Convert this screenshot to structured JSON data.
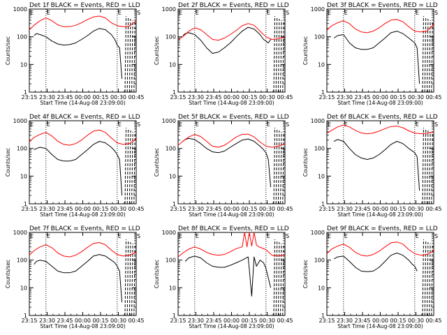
{
  "figure": {
    "ylabel": "Counts/sec",
    "xlabel": "Start Time (14-Aug-08 23:09:00)",
    "x_ticks": [
      "23:15",
      "23:30",
      "23:45",
      "00:00",
      "00:15",
      "00:30",
      "00:45"
    ],
    "y_ticks": [
      "1",
      "10",
      "100",
      "1000"
    ],
    "markers": [
      {
        "label": "E",
        "time_min": 20
      },
      {
        "label": "E",
        "time_min": 80
      },
      {
        "label": "S",
        "time_min": 96
      }
    ],
    "colors": {
      "events": "#000000",
      "lld": "#ff0000"
    }
  },
  "chart_data": [
    {
      "type": "line",
      "title": "Det 1f BLACK = Events, RED = LLD",
      "ylim": [
        1,
        1000
      ],
      "x_range_min": [
        6,
        96
      ],
      "series": [
        {
          "name": "BLACK = Events",
          "color": "#000000",
          "x": [
            10,
            12,
            15,
            20,
            25,
            30,
            35,
            40,
            45,
            50,
            55,
            60,
            65,
            70,
            75,
            78,
            80,
            82,
            84
          ],
          "y": [
            110,
            130,
            120,
            100,
            70,
            55,
            50,
            52,
            60,
            80,
            110,
            160,
            200,
            180,
            120,
            80,
            50,
            40,
            3
          ]
        },
        {
          "name": "RED = LLD",
          "color": "#ff0000",
          "x": [
            6,
            10,
            15,
            20,
            25,
            30,
            35,
            40,
            45,
            50,
            55,
            60,
            65,
            70,
            75,
            80,
            85,
            90,
            95,
            96
          ],
          "y": [
            180,
            260,
            380,
            480,
            380,
            270,
            230,
            230,
            260,
            320,
            420,
            520,
            560,
            480,
            320,
            250,
            230,
            240,
            350,
            400
          ]
        }
      ]
    },
    {
      "type": "line",
      "title": "Det 2f BLACK = Events, RED = LLD",
      "ylim": [
        1,
        1000
      ],
      "x_range_min": [
        6,
        96
      ],
      "series": [
        {
          "name": "BLACK = Events",
          "color": "#000000",
          "x": [
            10,
            12,
            15,
            20,
            25,
            30,
            35,
            40,
            45,
            50,
            55,
            60,
            65,
            70,
            75,
            78,
            80,
            82,
            84
          ],
          "y": [
            110,
            130,
            140,
            120,
            75,
            40,
            25,
            28,
            40,
            60,
            100,
            160,
            220,
            190,
            120,
            80,
            70,
            60,
            80
          ]
        },
        {
          "name": "RED = LLD",
          "color": "#ff0000",
          "x": [
            6,
            10,
            15,
            20,
            25,
            30,
            35,
            40,
            45,
            50,
            55,
            60,
            65,
            70,
            75,
            80,
            85,
            90,
            95,
            96
          ],
          "y": [
            80,
            100,
            160,
            210,
            180,
            120,
            80,
            75,
            90,
            120,
            170,
            250,
            300,
            260,
            160,
            100,
            80,
            85,
            95,
            100
          ]
        }
      ]
    },
    {
      "type": "line",
      "title": "Det 3f BLACK = Events, RED = LLD",
      "ylim": [
        1,
        1000
      ],
      "x_range_min": [
        6,
        96
      ],
      "series": [
        {
          "name": "BLACK = Events",
          "color": "#000000",
          "x": [
            12,
            15,
            20,
            25,
            30,
            35,
            40,
            45,
            50,
            55,
            60,
            65,
            70,
            75,
            80,
            82,
            84
          ],
          "y": [
            90,
            110,
            120,
            60,
            40,
            35,
            35,
            40,
            60,
            90,
            140,
            160,
            130,
            90,
            60,
            40,
            2
          ]
        },
        {
          "name": "RED = LLD",
          "color": "#ff0000",
          "x": [
            6,
            10,
            15,
            20,
            25,
            30,
            35,
            40,
            45,
            50,
            55,
            60,
            65,
            70,
            75,
            80,
            85,
            90,
            95,
            96
          ],
          "y": [
            170,
            250,
            320,
            380,
            300,
            190,
            150,
            140,
            160,
            210,
            300,
            400,
            420,
            350,
            230,
            160,
            150,
            160,
            250,
            300
          ]
        }
      ]
    },
    {
      "type": "line",
      "title": "Det 4f BLACK = Events, RED = LLD",
      "ylim": [
        1,
        1000
      ],
      "x_range_min": [
        6,
        96
      ],
      "series": [
        {
          "name": "BLACK = Events",
          "color": "#000000",
          "x": [
            10,
            12,
            15,
            20,
            25,
            30,
            35,
            40,
            45,
            50,
            55,
            60,
            65,
            70,
            75,
            78,
            80,
            82,
            84
          ],
          "y": [
            90,
            100,
            110,
            100,
            60,
            40,
            35,
            35,
            40,
            60,
            90,
            140,
            180,
            160,
            110,
            80,
            60,
            40,
            2
          ]
        },
        {
          "name": "RED = LLD",
          "color": "#ff0000",
          "x": [
            6,
            10,
            15,
            20,
            25,
            30,
            35,
            40,
            45,
            50,
            55,
            60,
            65,
            70,
            75,
            80,
            85,
            90,
            95,
            96
          ],
          "y": [
            170,
            250,
            320,
            380,
            280,
            180,
            140,
            130,
            150,
            200,
            300,
            420,
            460,
            380,
            240,
            160,
            140,
            150,
            200,
            250
          ]
        }
      ]
    },
    {
      "type": "line",
      "title": "Det 5f BLACK = Events, RED = LLD",
      "ylim": [
        1,
        1000
      ],
      "x_range_min": [
        6,
        96
      ],
      "series": [
        {
          "name": "BLACK = Events",
          "color": "#000000",
          "x": [
            10,
            12,
            15,
            20,
            25,
            30,
            35,
            40,
            45,
            50,
            55,
            60,
            65,
            70,
            75,
            78,
            80,
            82,
            84
          ],
          "y": [
            180,
            210,
            230,
            210,
            150,
            100,
            75,
            70,
            80,
            110,
            150,
            200,
            220,
            180,
            120,
            90,
            70,
            40,
            4
          ]
        },
        {
          "name": "RED = LLD",
          "color": "#ff0000",
          "x": [
            6,
            10,
            15,
            20,
            25,
            30,
            35,
            40,
            45,
            50,
            55,
            60,
            65,
            70,
            75,
            80,
            85,
            90,
            95,
            96
          ],
          "y": [
            130,
            180,
            260,
            320,
            270,
            180,
            120,
            110,
            130,
            180,
            260,
            320,
            330,
            260,
            170,
            120,
            110,
            120,
            140,
            150
          ]
        }
      ]
    },
    {
      "type": "line",
      "title": "Det 6f BLACK = Events, RED = LLD",
      "ylim": [
        1,
        1000
      ],
      "x_range_min": [
        6,
        96
      ],
      "series": [
        {
          "name": "BLACK = Events",
          "color": "#000000",
          "x": [
            12,
            15,
            20,
            25,
            30,
            35,
            40,
            45,
            50,
            55,
            60,
            65,
            70,
            75,
            80,
            82,
            84
          ],
          "y": [
            180,
            210,
            180,
            100,
            60,
            45,
            40,
            45,
            60,
            90,
            140,
            180,
            150,
            100,
            70,
            50,
            3
          ]
        },
        {
          "name": "RED = LLD",
          "color": "#ff0000",
          "x": [
            6,
            10,
            15,
            20,
            25,
            30,
            35,
            40,
            45,
            50,
            55,
            60,
            65,
            70,
            75,
            80,
            85,
            90,
            95,
            96
          ],
          "y": [
            350,
            450,
            600,
            700,
            600,
            450,
            360,
            340,
            360,
            420,
            520,
            620,
            640,
            560,
            430,
            360,
            340,
            350,
            380,
            400
          ]
        }
      ]
    },
    {
      "type": "line",
      "title": "Det 7f BLACK = Events, RED = LLD",
      "ylim": [
        1,
        1000
      ],
      "x_range_min": [
        6,
        96
      ],
      "series": [
        {
          "name": "BLACK = Events",
          "color": "#000000",
          "x": [
            10,
            12,
            15,
            20,
            25,
            30,
            35,
            40,
            45,
            50,
            55,
            60,
            65,
            70,
            75,
            78,
            80,
            82,
            84
          ],
          "y": [
            70,
            90,
            100,
            90,
            60,
            40,
            35,
            35,
            40,
            60,
            90,
            140,
            160,
            140,
            100,
            80,
            60,
            40,
            3
          ]
        },
        {
          "name": "RED = LLD",
          "color": "#ff0000",
          "x": [
            6,
            10,
            15,
            20,
            25,
            30,
            35,
            40,
            45,
            50,
            55,
            60,
            65,
            70,
            75,
            80,
            85,
            90,
            95,
            96
          ],
          "y": [
            150,
            220,
            300,
            360,
            280,
            180,
            140,
            130,
            150,
            200,
            290,
            400,
            430,
            360,
            230,
            160,
            140,
            150,
            180,
            200
          ]
        }
      ]
    },
    {
      "type": "line",
      "title": "Det 8f BLACK = Events, RED = LLD",
      "ylim": [
        1,
        1000
      ],
      "x_range_min": [
        6,
        96
      ],
      "series": [
        {
          "name": "BLACK = Events",
          "color": "#000000",
          "x": [
            12,
            15,
            20,
            25,
            30,
            35,
            40,
            45,
            50,
            55,
            60,
            65,
            68,
            70,
            72,
            75,
            78,
            80,
            84
          ],
          "y": [
            90,
            120,
            140,
            120,
            80,
            60,
            55,
            55,
            65,
            80,
            100,
            130,
            5,
            130,
            60,
            100,
            80,
            50,
            10
          ]
        },
        {
          "name": "RED = LLD",
          "color": "#ff0000",
          "x": [
            6,
            10,
            15,
            20,
            25,
            30,
            35,
            40,
            45,
            50,
            55,
            60,
            62,
            64,
            66,
            68,
            70,
            72,
            74,
            76,
            80,
            85,
            90,
            95,
            96
          ],
          "y": [
            130,
            180,
            250,
            300,
            250,
            190,
            160,
            150,
            160,
            200,
            260,
            300,
            1000,
            300,
            1000,
            320,
            1000,
            350,
            300,
            280,
            240,
            150,
            140,
            150,
            160
          ]
        }
      ]
    },
    {
      "type": "line",
      "title": "Det 9f BLACK = Events, RED = LLD",
      "ylim": [
        1,
        1000
      ],
      "x_range_min": [
        6,
        96
      ],
      "series": [
        {
          "name": "BLACK = Events",
          "color": "#000000",
          "x": [
            12,
            15,
            20,
            25,
            30,
            35,
            40,
            45,
            50,
            55,
            60,
            65,
            70,
            75,
            78,
            80,
            82
          ],
          "y": [
            110,
            130,
            140,
            90,
            55,
            40,
            38,
            40,
            55,
            90,
            150,
            180,
            150,
            100,
            70,
            60,
            40
          ]
        },
        {
          "name": "RED = LLD",
          "color": "#ff0000",
          "x": [
            6,
            10,
            15,
            20,
            25,
            30,
            35,
            40,
            45,
            50,
            55,
            60,
            65,
            70,
            75,
            80,
            85,
            90,
            95,
            96
          ],
          "y": [
            170,
            250,
            320,
            380,
            290,
            190,
            150,
            140,
            160,
            210,
            300,
            420,
            450,
            380,
            240,
            170,
            150,
            160,
            200,
            250
          ]
        }
      ]
    }
  ]
}
